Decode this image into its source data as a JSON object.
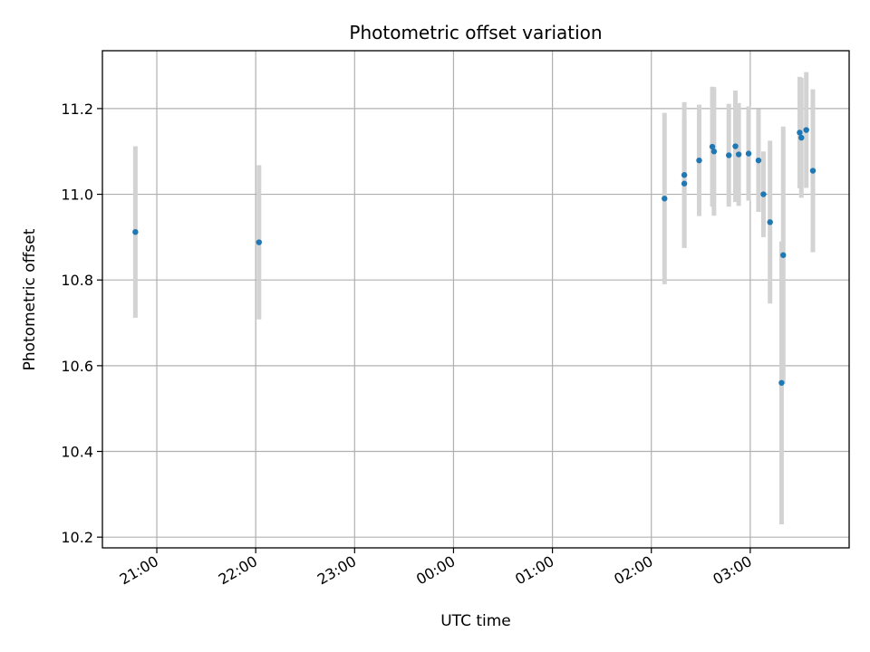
{
  "chart_data": {
    "type": "scatter",
    "title": "Photometric offset variation",
    "xlabel": "UTC time",
    "ylabel": "Photometric offset",
    "x_ticks": [
      "21:00",
      "22:00",
      "23:00",
      "00:00",
      "01:00",
      "02:00",
      "03:00"
    ],
    "y_ticks": [
      "10.2",
      "10.4",
      "10.6",
      "10.8",
      "11.0",
      "11.2"
    ],
    "xlim": [
      "20:27",
      "04:00"
    ],
    "ylim": [
      10.175,
      11.335
    ],
    "grid": true,
    "marker_color": "#1f77b4",
    "errorbar_color": "#d3d3d3",
    "points": [
      {
        "x": "20:47",
        "y": 10.912,
        "err": 0.2
      },
      {
        "x": "22:02",
        "y": 10.888,
        "err": 0.18
      },
      {
        "x": "02:08",
        "y": 10.99,
        "err": 0.2
      },
      {
        "x": "02:20",
        "y": 11.045,
        "err": 0.17
      },
      {
        "x": "02:20",
        "y": 11.025,
        "err": 0.15
      },
      {
        "x": "02:29",
        "y": 11.079,
        "err": 0.13
      },
      {
        "x": "02:37",
        "y": 11.111,
        "err": 0.14
      },
      {
        "x": "02:38",
        "y": 11.1,
        "err": 0.15
      },
      {
        "x": "02:47",
        "y": 11.091,
        "err": 0.12
      },
      {
        "x": "02:51",
        "y": 11.112,
        "err": 0.13
      },
      {
        "x": "02:53",
        "y": 11.093,
        "err": 0.12
      },
      {
        "x": "02:59",
        "y": 11.095,
        "err": 0.11
      },
      {
        "x": "03:05",
        "y": 11.079,
        "err": 0.12
      },
      {
        "x": "03:08",
        "y": 11.0,
        "err": 0.1
      },
      {
        "x": "03:12",
        "y": 10.935,
        "err": 0.19
      },
      {
        "x": "03:19",
        "y": 10.56,
        "err": 0.33
      },
      {
        "x": "03:20",
        "y": 10.858,
        "err": 0.3
      },
      {
        "x": "03:30",
        "y": 11.144,
        "err": 0.13
      },
      {
        "x": "03:31",
        "y": 11.132,
        "err": 0.14
      },
      {
        "x": "03:34",
        "y": 11.15,
        "err": 0.135
      },
      {
        "x": "03:38",
        "y": 11.055,
        "err": 0.19
      }
    ]
  }
}
